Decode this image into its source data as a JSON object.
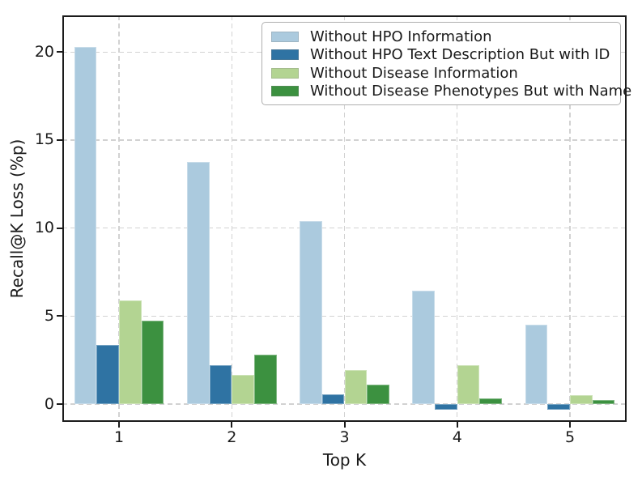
{
  "chart_data": {
    "type": "bar",
    "title": "",
    "xlabel": "Top K",
    "ylabel": "Recall@K Loss (%p)",
    "categories": [
      "1",
      "2",
      "3",
      "4",
      "5"
    ],
    "series": [
      {
        "name": "Without HPO Information",
        "color": "#abcade",
        "values": [
          20.3,
          13.75,
          10.4,
          6.45,
          4.5
        ]
      },
      {
        "name": "Without HPO Text Description But with ID",
        "color": "#2f73a3",
        "values": [
          3.35,
          2.2,
          0.55,
          -0.3,
          -0.3
        ]
      },
      {
        "name": "Without Disease Information",
        "color": "#b3d492",
        "values": [
          5.9,
          1.65,
          1.95,
          2.2,
          0.5
        ]
      },
      {
        "name": "Without Disease Phenotypes But with Name",
        "color": "#3c9140",
        "values": [
          4.75,
          2.8,
          1.1,
          0.3,
          0.25
        ]
      }
    ],
    "yticks": [
      0,
      5,
      10,
      15,
      20
    ],
    "ylim": [
      -1.01,
      22.09
    ],
    "grid": "dashed",
    "legend_position": "upper right",
    "axis_color": "#1b1b1b",
    "grid_color": "#d2d2d2"
  }
}
